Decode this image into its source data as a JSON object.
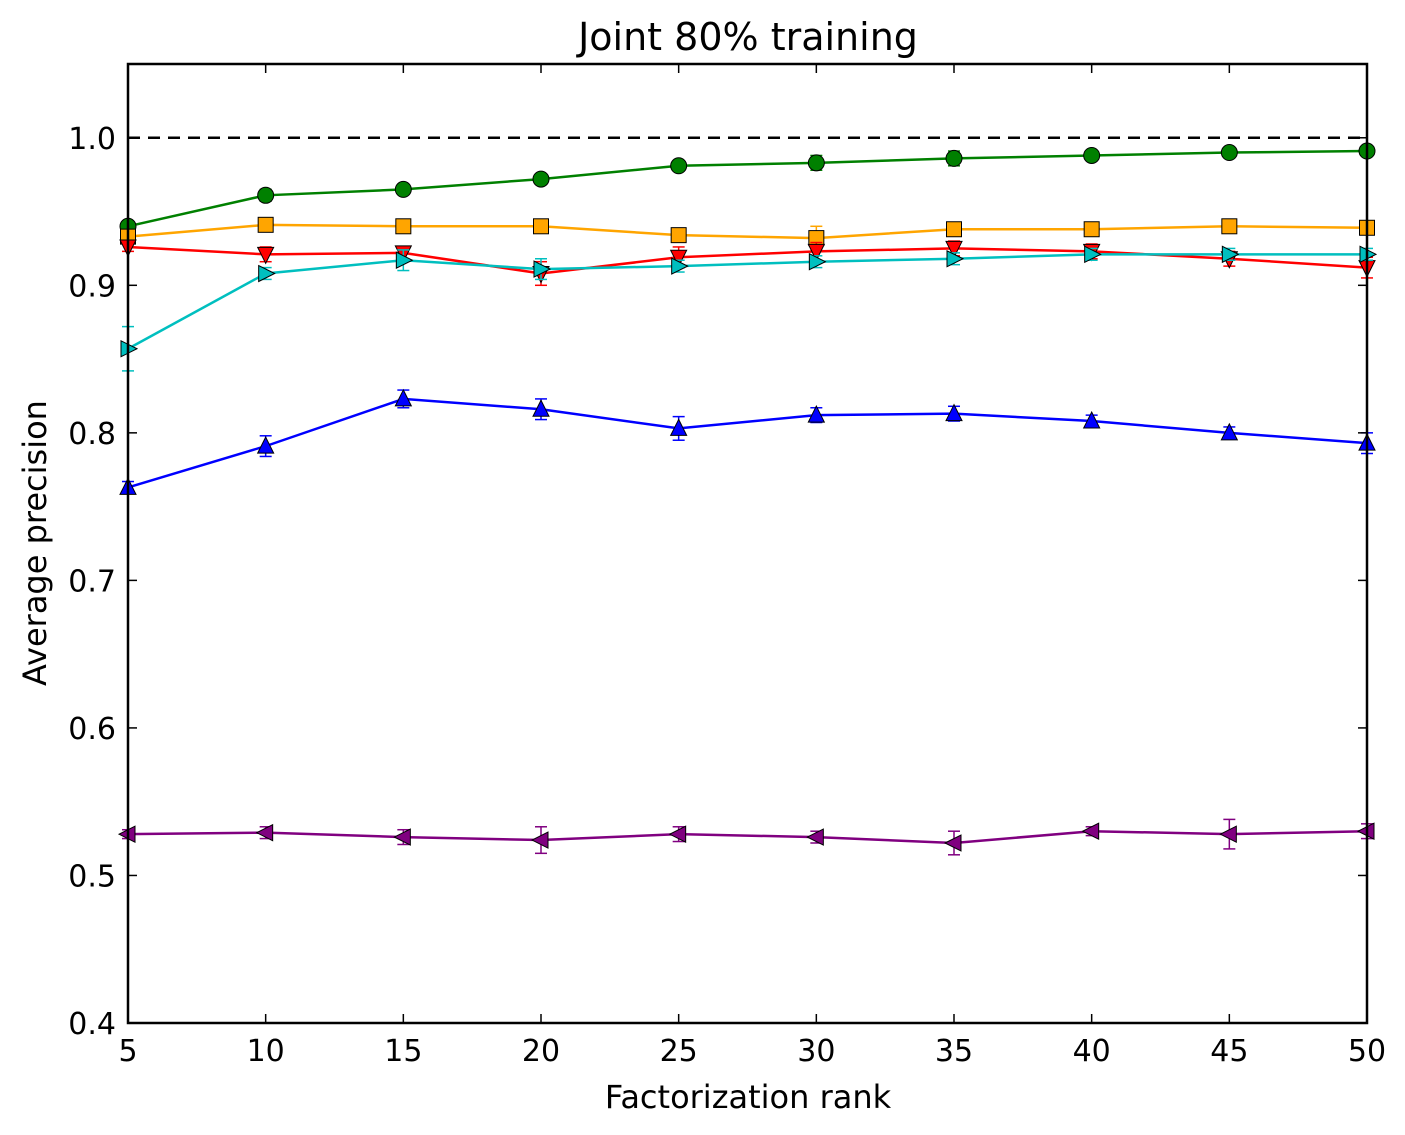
{
  "chart_data": {
    "type": "line",
    "title": "Joint 80% training",
    "xlabel": "Factorization rank",
    "ylabel": "Average precision",
    "xlim": [
      5,
      50
    ],
    "ylim": [
      0.4,
      1.05
    ],
    "x": [
      5,
      10,
      15,
      20,
      25,
      30,
      35,
      40,
      45,
      50
    ],
    "xticks": [
      "5",
      "10",
      "15",
      "20",
      "25",
      "30",
      "35",
      "40",
      "45",
      "50"
    ],
    "yticks": [
      "0.4",
      "0.5",
      "0.6",
      "0.7",
      "0.8",
      "0.9",
      "1.0"
    ],
    "reference_line": 1.0,
    "grid": false,
    "legend": "none",
    "series": [
      {
        "color": "#008000",
        "marker": "circle",
        "values": [
          0.94,
          0.961,
          0.965,
          0.972,
          0.981,
          0.983,
          0.986,
          0.988,
          0.99,
          0.991
        ],
        "errors": [
          0.003,
          0.004,
          0.003,
          0.003,
          0.003,
          0.005,
          0.005,
          0.003,
          0.003,
          0.003
        ]
      },
      {
        "color": "#ffa500",
        "marker": "square",
        "values": [
          0.933,
          0.941,
          0.94,
          0.94,
          0.934,
          0.932,
          0.938,
          0.938,
          0.94,
          0.939
        ],
        "errors": [
          0.003,
          0.003,
          0.003,
          0.003,
          0.004,
          0.008,
          0.004,
          0.003,
          0.003,
          0.003
        ]
      },
      {
        "color": "#ff0000",
        "marker": "triangle-down",
        "values": [
          0.926,
          0.921,
          0.922,
          0.908,
          0.919,
          0.923,
          0.925,
          0.923,
          0.918,
          0.912
        ],
        "errors": [
          0.003,
          0.005,
          0.004,
          0.008,
          0.007,
          0.006,
          0.005,
          0.005,
          0.005,
          0.007
        ]
      },
      {
        "color": "#00bfbf",
        "marker": "triangle-right",
        "values": [
          0.857,
          0.908,
          0.917,
          0.911,
          0.913,
          0.916,
          0.918,
          0.921,
          0.921,
          0.921
        ],
        "errors": [
          0.015,
          0.004,
          0.007,
          0.007,
          0.004,
          0.004,
          0.004,
          0.004,
          0.004,
          0.004
        ]
      },
      {
        "color": "#0000ff",
        "marker": "triangle-up",
        "values": [
          0.763,
          0.791,
          0.823,
          0.816,
          0.803,
          0.812,
          0.813,
          0.808,
          0.8,
          0.793
        ],
        "errors": [
          0.004,
          0.007,
          0.006,
          0.007,
          0.008,
          0.005,
          0.005,
          0.004,
          0.004,
          0.007
        ]
      },
      {
        "color": "#800080",
        "marker": "triangle-left",
        "values": [
          0.528,
          0.529,
          0.526,
          0.524,
          0.528,
          0.526,
          0.522,
          0.53,
          0.528,
          0.53
        ],
        "errors": [
          0.003,
          0.004,
          0.005,
          0.009,
          0.005,
          0.004,
          0.008,
          0.003,
          0.01,
          0.005
        ]
      }
    ]
  }
}
